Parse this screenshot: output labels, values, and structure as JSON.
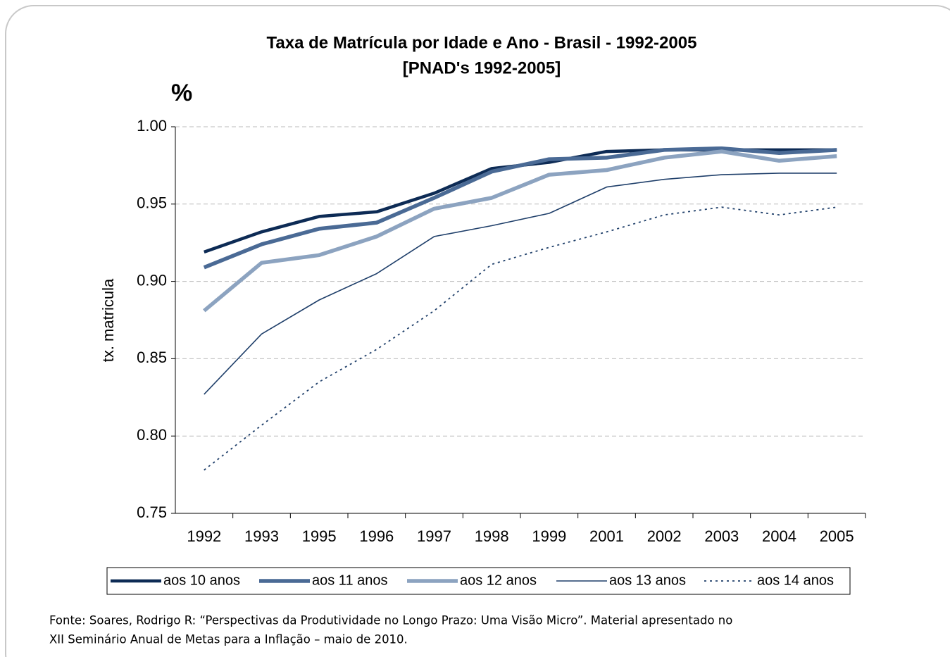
{
  "chart_data": {
    "type": "line",
    "title": [
      "Taxa de Matrícula por Idade e Ano - Brasil - 1992-2005",
      "[PNAD's 1992-2005]"
    ],
    "unit_annotation": "%",
    "y_label": "tx. matricula",
    "categories": [
      "1992",
      "1993",
      "1995",
      "1996",
      "1997",
      "1998",
      "1999",
      "2001",
      "2002",
      "2003",
      "2004",
      "2005"
    ],
    "series": [
      {
        "name": "aos 10 anos",
        "color": "#0d2b55",
        "values": [
          0.919,
          0.932,
          0.942,
          0.945,
          0.957,
          0.973,
          0.977,
          0.984,
          0.985,
          0.985,
          0.985,
          0.985
        ]
      },
      {
        "name": "aos 11 anos",
        "color": "#4a6a95",
        "values": [
          0.909,
          0.924,
          0.934,
          0.938,
          0.954,
          0.971,
          0.979,
          0.98,
          0.985,
          0.986,
          0.983,
          0.985
        ]
      },
      {
        "name": "aos 12 anos",
        "color": "#8ca3c0",
        "values": [
          0.881,
          0.912,
          0.917,
          0.929,
          0.947,
          0.954,
          0.969,
          0.972,
          0.98,
          0.984,
          0.978,
          0.981
        ]
      },
      {
        "name": "aos 13 anos",
        "color": "#1f3f6a",
        "values": [
          0.827,
          0.866,
          0.888,
          0.905,
          0.929,
          0.936,
          0.944,
          0.961,
          0.966,
          0.969,
          0.97,
          0.97
        ]
      },
      {
        "name": "aos 14 anos",
        "color": "#1f3f6a",
        "values": [
          0.778,
          0.807,
          0.835,
          0.856,
          0.881,
          0.911,
          0.922,
          0.932,
          0.943,
          0.948,
          0.943,
          0.948
        ]
      }
    ],
    "ylim": [
      0.75,
      1.0
    ],
    "yticks": [
      {
        "value": 0.75,
        "label": "0.75"
      },
      {
        "value": 0.8,
        "label": "0.80"
      },
      {
        "value": 0.85,
        "label": "0.85"
      },
      {
        "value": 0.9,
        "label": "0.90"
      },
      {
        "value": 0.95,
        "label": "0.95"
      },
      {
        "value": 1.0,
        "label": "1.00"
      }
    ],
    "grid": true,
    "legend": "bottom",
    "note": [
      "Fonte: Soares, Rodrigo R: “Perspectivas da Produtividade no Longo Prazo: Uma Visão Micro”. Material apresentado no",
      "XII Seminário Anual de Metas para a Inflação – maio de 2010."
    ]
  }
}
